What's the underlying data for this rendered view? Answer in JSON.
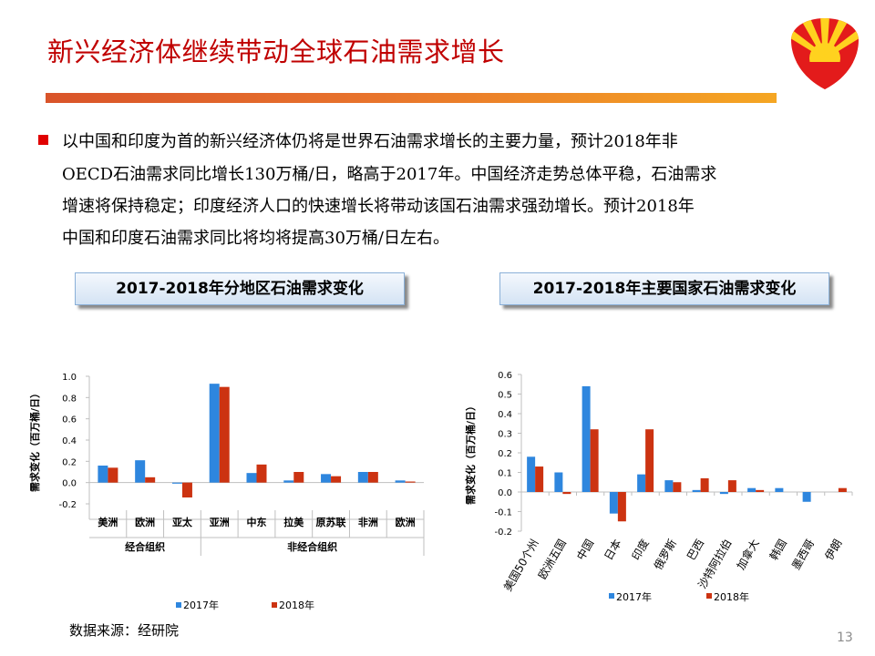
{
  "title": "新兴经济体继续带动全球石油需求增长",
  "paragraph": {
    "lines": [
      "以中国和印度为首的新兴经济体仍将是世界石油需求增长的主要力量，预计2018年非",
      "OECD石油需求同比增长130万桶/日，略高于2017年。中国经济走势总体平稳，石油需求",
      "增速将保持稳定；印度经济人口的快速增长将带动该国石油需求强劲增长。预计2018年",
      "中国和印度石油需求同比将均将提高30万桶/日左右。"
    ]
  },
  "section_left": "2017-2018年分地区石油需求变化",
  "section_right": "2017-2018年主要国家石油需求变化",
  "colors": {
    "s2017": "#2e86de",
    "s2018": "#cc3311",
    "title_red": "#c00000"
  },
  "chart_data": [
    {
      "type": "bar",
      "ylabel": "需求变化（百万桶/日）",
      "ylim": [
        -0.2,
        1.0
      ],
      "yticks": [
        "-0.2",
        "0.0",
        "0.2",
        "0.4",
        "0.6",
        "0.8",
        "1.0"
      ],
      "categories": [
        "美洲",
        "欧洲",
        "亚太",
        "亚洲",
        "中东",
        "拉美",
        "原苏联",
        "非洲",
        "欧洲"
      ],
      "groups": [
        {
          "label": "经合组织",
          "count": 3
        },
        {
          "label": "非经合组织",
          "count": 6
        }
      ],
      "series": [
        {
          "name": "2017年",
          "values": [
            0.16,
            0.21,
            -0.01,
            0.93,
            0.09,
            0.02,
            0.08,
            0.1,
            0.02
          ]
        },
        {
          "name": "2018年",
          "values": [
            0.14,
            0.05,
            -0.14,
            0.9,
            0.17,
            0.1,
            0.06,
            0.1,
            0.01
          ]
        }
      ],
      "legend": "bottom"
    },
    {
      "type": "bar",
      "ylabel": "需求变化（百万桶/日）",
      "ylim": [
        -0.2,
        0.6
      ],
      "yticks": [
        "-0.2",
        "-0.1",
        "0.0",
        "0.1",
        "0.2",
        "0.3",
        "0.4",
        "0.5",
        "0.6"
      ],
      "categories": [
        "美国50个州",
        "欧洲五国",
        "中国",
        "日本",
        "印度",
        "俄罗斯",
        "巴西",
        "沙特阿拉伯",
        "加拿大",
        "韩国",
        "墨西哥",
        "伊朗"
      ],
      "series": [
        {
          "name": "2017年",
          "values": [
            0.18,
            0.1,
            0.54,
            -0.11,
            0.09,
            0.06,
            0.01,
            -0.01,
            0.02,
            0.02,
            -0.05,
            0.0
          ]
        },
        {
          "name": "2018年",
          "values": [
            0.13,
            -0.01,
            0.32,
            -0.15,
            0.32,
            0.05,
            0.07,
            0.06,
            0.01,
            0.0,
            0.0,
            0.02
          ]
        }
      ],
      "legend": "bottom"
    }
  ],
  "source": "数据来源：经研院",
  "page_number": "13"
}
